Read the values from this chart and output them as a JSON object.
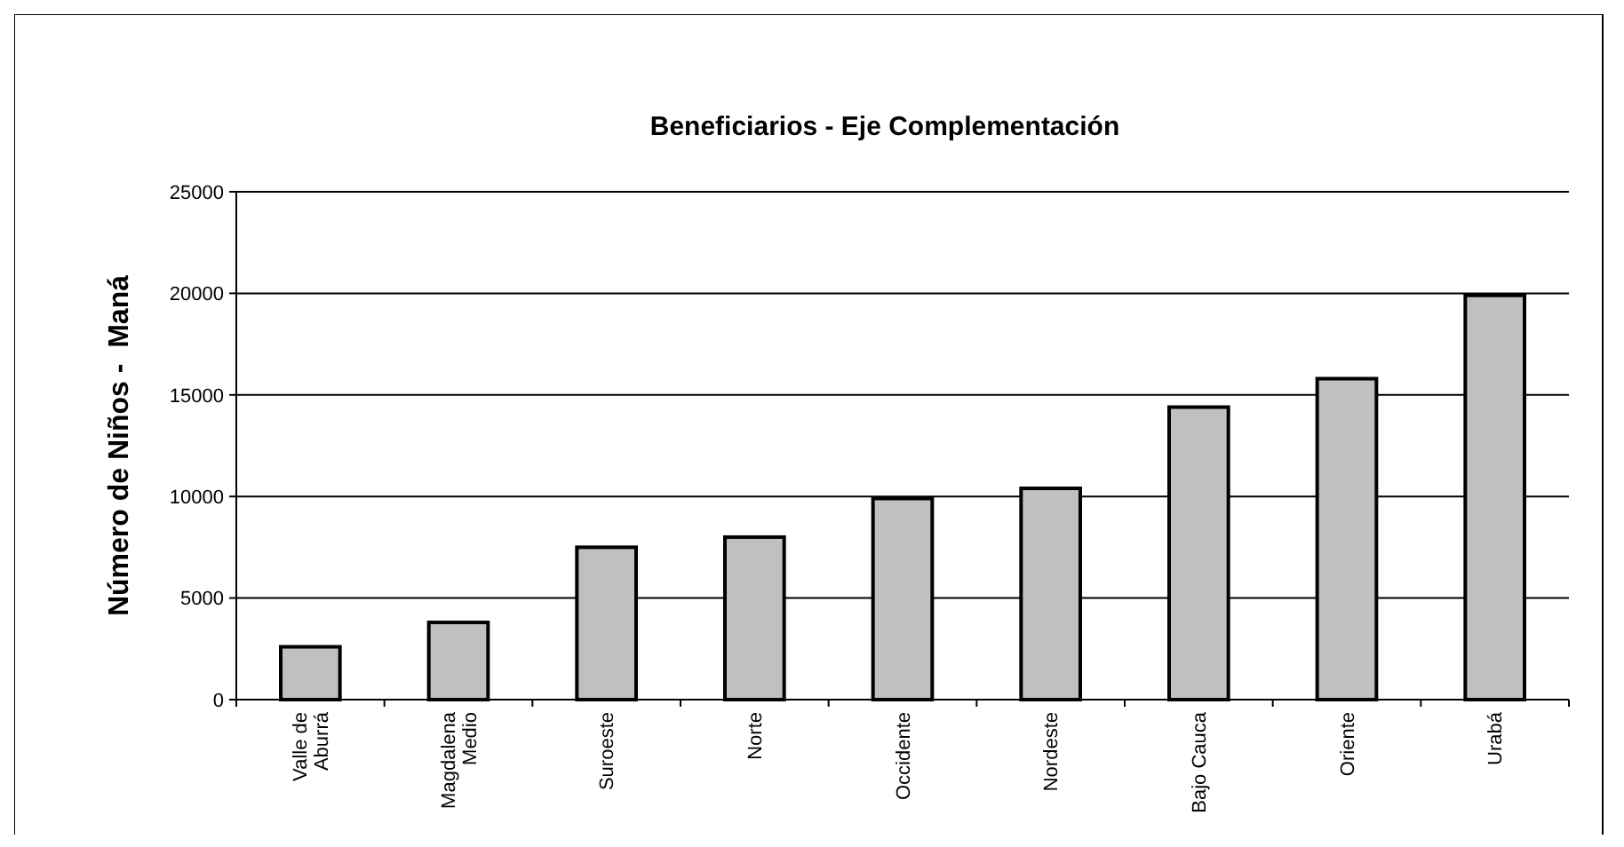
{
  "chart_data": {
    "type": "bar",
    "title": "Beneficiarios - Eje Complementación",
    "ylabel": "Número de Niños -  Maná",
    "categories": [
      "Valle de Aburrá",
      "Magdalena Medio",
      "Suroeste",
      "Norte",
      "Occidente",
      "Nordeste",
      "Bajo Cauca",
      "Oriente",
      "Urabá"
    ],
    "values": [
      2600,
      3800,
      7500,
      8000,
      9900,
      10400,
      14400,
      15800,
      19900
    ],
    "color": "#c0c0c0",
    "ylim": [
      0,
      25000
    ],
    "yticks": [
      0,
      5000,
      10000,
      15000,
      20000,
      25000
    ],
    "grid": "y"
  }
}
